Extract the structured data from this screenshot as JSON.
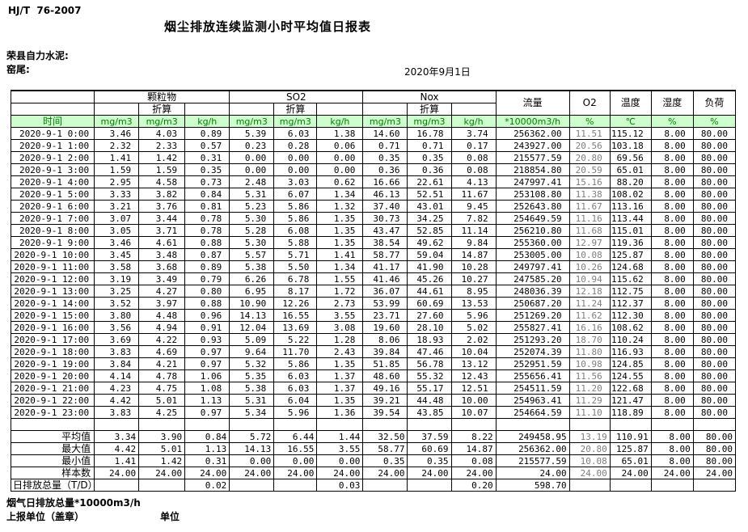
{
  "page": {
    "doc_code": "HJ/T  76-2007",
    "title": "烟尘排放连续监测小时平均值日报表",
    "company": "荣县自力水泥:",
    "location": "窑尾:",
    "date": "2020年9月1日",
    "footer_note": "烟气日排放总量*10000m3/h",
    "report_unit_label": "上报单位（盖章）",
    "unit_label": "单位"
  },
  "colors": {
    "header_green_bg": "#ccffcc",
    "header_green_text": "#008000",
    "o2_column_text": "#7d7d7d"
  },
  "table": {
    "time_header": "时间",
    "groups": [
      {
        "label": "颗粒物",
        "sub": "折算"
      },
      {
        "label": "SO2",
        "sub": "折算"
      },
      {
        "label": "Nox",
        "sub": "折算"
      },
      {
        "label": "流量"
      },
      {
        "label": "O2"
      },
      {
        "label": "温度"
      },
      {
        "label": "湿度"
      },
      {
        "label": "负荷"
      }
    ],
    "units": [
      "mg/m3",
      "mg/m3",
      "kg/h",
      "mg/m3",
      "mg/m3",
      "kg/h",
      "mg/m3",
      "mg/m3",
      "kg/h",
      "*10000m3/h",
      "%",
      "℃",
      "%",
      "%"
    ],
    "rows": [
      {
        "time": "2020-9-1 0:00",
        "values": [
          "3.46",
          "4.03",
          "0.89",
          "5.39",
          "6.03",
          "1.38",
          "14.60",
          "16.78",
          "3.74",
          "256362.00",
          "11.51",
          "115.12",
          "8.00",
          "80.00"
        ]
      },
      {
        "time": "2020-9-1 1:00",
        "values": [
          "2.32",
          "2.33",
          "0.57",
          "0.23",
          "0.28",
          "0.06",
          "0.71",
          "0.71",
          "0.17",
          "243927.00",
          "20.56",
          "103.18",
          "8.00",
          "80.00"
        ]
      },
      {
        "time": "2020-9-1 2:00",
        "values": [
          "1.41",
          "1.42",
          "0.31",
          "0.00",
          "0.00",
          "0.00",
          "0.35",
          "0.35",
          "0.08",
          "215577.59",
          "20.80",
          "69.56",
          "8.00",
          "80.00"
        ]
      },
      {
        "time": "2020-9-1 3:00",
        "values": [
          "1.59",
          "1.59",
          "0.35",
          "0.00",
          "0.00",
          "0.00",
          "0.36",
          "0.36",
          "0.08",
          "218854.80",
          "20.59",
          "65.01",
          "8.00",
          "80.00"
        ]
      },
      {
        "time": "2020-9-1 4:00",
        "values": [
          "2.95",
          "4.58",
          "0.73",
          "2.48",
          "3.03",
          "0.62",
          "16.66",
          "22.61",
          "4.13",
          "247997.41",
          "15.16",
          "88.20",
          "8.00",
          "80.00"
        ]
      },
      {
        "time": "2020-9-1 5:00",
        "values": [
          "3.33",
          "3.82",
          "0.84",
          "5.31",
          "6.07",
          "1.34",
          "46.13",
          "52.51",
          "11.67",
          "253108.80",
          "11.38",
          "108.02",
          "8.00",
          "80.00"
        ]
      },
      {
        "time": "2020-9-1 6:00",
        "values": [
          "3.21",
          "3.76",
          "0.81",
          "5.23",
          "5.86",
          "1.32",
          "37.40",
          "43.01",
          "9.45",
          "252643.80",
          "11.67",
          "113.16",
          "8.00",
          "80.00"
        ]
      },
      {
        "time": "2020-9-1 7:00",
        "values": [
          "3.07",
          "3.44",
          "0.78",
          "5.30",
          "5.86",
          "1.35",
          "30.73",
          "34.25",
          "7.82",
          "254649.59",
          "11.16",
          "113.44",
          "8.00",
          "80.00"
        ]
      },
      {
        "time": "2020-9-1 8:00",
        "values": [
          "3.05",
          "3.71",
          "0.78",
          "5.28",
          "6.08",
          "1.35",
          "43.47",
          "52.85",
          "11.14",
          "256210.80",
          "11.68",
          "115.01",
          "8.00",
          "80.00"
        ]
      },
      {
        "time": "2020-9-1 9:00",
        "values": [
          "3.46",
          "4.61",
          "0.88",
          "5.30",
          "5.88",
          "1.35",
          "38.54",
          "49.62",
          "9.84",
          "255360.00",
          "12.97",
          "119.36",
          "8.00",
          "80.00"
        ]
      },
      {
        "time": "2020-9-1 10:00",
        "values": [
          "3.45",
          "3.48",
          "0.87",
          "5.57",
          "5.71",
          "1.41",
          "58.77",
          "59.04",
          "14.87",
          "253005.00",
          "10.08",
          "125.87",
          "8.00",
          "80.00"
        ]
      },
      {
        "time": "2020-9-1 11:00",
        "values": [
          "3.58",
          "3.68",
          "0.89",
          "5.38",
          "5.50",
          "1.34",
          "41.17",
          "41.90",
          "10.28",
          "249797.41",
          "10.26",
          "124.68",
          "8.00",
          "80.00"
        ]
      },
      {
        "time": "2020-9-1 12:00",
        "values": [
          "3.19",
          "3.49",
          "0.79",
          "6.26",
          "6.78",
          "1.55",
          "41.46",
          "45.26",
          "10.27",
          "247585.20",
          "10.94",
          "115.62",
          "8.00",
          "80.00"
        ]
      },
      {
        "time": "2020-9-1 13:00",
        "values": [
          "3.25",
          "4.27",
          "0.80",
          "6.95",
          "8.17",
          "1.72",
          "36.07",
          "44.61",
          "8.95",
          "248036.39",
          "12.18",
          "112.75",
          "8.00",
          "80.00"
        ]
      },
      {
        "time": "2020-9-1 14:00",
        "values": [
          "3.52",
          "3.97",
          "0.88",
          "10.90",
          "12.26",
          "2.73",
          "53.99",
          "60.69",
          "13.53",
          "250687.20",
          "11.24",
          "112.37",
          "8.00",
          "80.00"
        ]
      },
      {
        "time": "2020-9-1 15:00",
        "values": [
          "3.80",
          "4.48",
          "0.96",
          "14.13",
          "16.55",
          "3.55",
          "23.71",
          "27.60",
          "5.96",
          "251269.20",
          "11.62",
          "112.30",
          "8.00",
          "80.00"
        ]
      },
      {
        "time": "2020-9-1 16:00",
        "values": [
          "3.56",
          "4.94",
          "0.91",
          "12.04",
          "13.69",
          "3.08",
          "19.60",
          "28.10",
          "5.02",
          "255827.41",
          "16.16",
          "108.62",
          "8.00",
          "80.00"
        ]
      },
      {
        "time": "2020-9-1 17:00",
        "values": [
          "3.69",
          "4.22",
          "0.93",
          "5.09",
          "5.22",
          "1.28",
          "8.06",
          "18.93",
          "2.02",
          "251293.20",
          "18.70",
          "110.24",
          "8.00",
          "80.00"
        ]
      },
      {
        "time": "2020-9-1 18:00",
        "values": [
          "3.83",
          "4.69",
          "0.97",
          "9.64",
          "11.70",
          "2.43",
          "39.84",
          "47.46",
          "10.04",
          "252074.39",
          "11.80",
          "116.93",
          "8.00",
          "80.00"
        ]
      },
      {
        "time": "2020-9-1 19:00",
        "values": [
          "3.84",
          "4.21",
          "0.97",
          "5.32",
          "5.86",
          "1.35",
          "51.85",
          "56.78",
          "13.12",
          "252951.59",
          "10.98",
          "124.85",
          "8.00",
          "80.00"
        ]
      },
      {
        "time": "2020-9-1 20:00",
        "values": [
          "4.14",
          "4.78",
          "1.06",
          "5.35",
          "6.03",
          "1.37",
          "48.60",
          "55.32",
          "12.43",
          "255656.41",
          "11.56",
          "124.55",
          "8.00",
          "80.00"
        ]
      },
      {
        "time": "2020-9-1 21:00",
        "values": [
          "4.23",
          "4.75",
          "1.08",
          "5.38",
          "6.03",
          "1.37",
          "49.16",
          "55.17",
          "12.51",
          "254511.59",
          "11.20",
          "122.68",
          "8.00",
          "80.00"
        ]
      },
      {
        "time": "2020-9-1 22:00",
        "values": [
          "4.42",
          "5.01",
          "1.13",
          "5.31",
          "6.04",
          "1.35",
          "39.21",
          "44.48",
          "10.00",
          "254963.41",
          "11.29",
          "121.47",
          "8.00",
          "80.00"
        ]
      },
      {
        "time": "2020-9-1 23:00",
        "values": [
          "3.83",
          "4.25",
          "0.97",
          "5.34",
          "5.96",
          "1.36",
          "39.54",
          "43.85",
          "10.07",
          "254664.59",
          "11.10",
          "118.89",
          "8.00",
          "80.00"
        ]
      }
    ],
    "summary_rows": [
      {
        "label": "平均值",
        "align": "right",
        "values": [
          "3.34",
          "3.90",
          "0.84",
          "5.72",
          "6.44",
          "1.44",
          "32.50",
          "37.59",
          "8.22",
          "249458.95",
          "13.19",
          "110.91",
          "8.00",
          "80.00"
        ]
      },
      {
        "label": "最大值",
        "align": "right",
        "values": [
          "4.42",
          "5.01",
          "1.13",
          "14.13",
          "16.55",
          "3.55",
          "58.77",
          "60.69",
          "14.87",
          "256362.00",
          "20.80",
          "125.87",
          "8.00",
          "80.00"
        ]
      },
      {
        "label": "最小值",
        "align": "right",
        "values": [
          "1.41",
          "1.42",
          "0.31",
          "0.00",
          "0.00",
          "0.00",
          "0.35",
          "0.35",
          "0.08",
          "215577.59",
          "10.08",
          "65.01",
          "8.00",
          "80.00"
        ]
      },
      {
        "label": "样本数",
        "align": "right",
        "values": [
          "24.00",
          "24.00",
          "24.00",
          "24.00",
          "24.00",
          "24.00",
          "24.00",
          "24.00",
          "24.00",
          "24.00",
          "24.00",
          "24.00",
          "24.00",
          "24.00"
        ]
      },
      {
        "label": "日排放总量（T/D）",
        "align": "left",
        "values": [
          "",
          "",
          "0.02",
          "",
          "",
          "0.03",
          "",
          "",
          "0.20",
          "598.70",
          "",
          "",
          "",
          ""
        ]
      }
    ]
  }
}
